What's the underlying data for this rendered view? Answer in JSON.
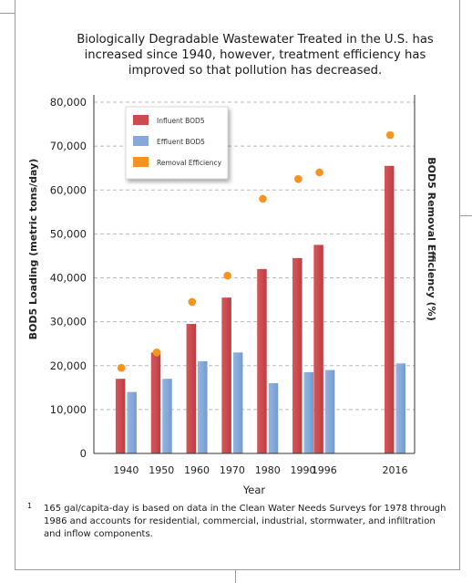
{
  "title": "Biologically Degradable Wastewater Treated in the U.S. has\nincreased since 1940, however, treatment efficiency has\nimproved so that pollution has decreased.",
  "footnote": {
    "marker": "1",
    "text": "165 gal/capita-day is based on data in the Clean Water Needs Surveys for 1978 through 1986 and accounts for residential, commercial, industrial, stormwater, and infiltration and inflow components."
  },
  "colors": {
    "influent": "#cc4b4f",
    "effluent": "#85a9d9",
    "efficiency": "#f7941d",
    "grid": "#b8b8b8",
    "axis": "#333333"
  },
  "chart_data": {
    "type": "bar",
    "xlabel": "Year",
    "ylabel": "BOD5 Loading (metric tons/day)",
    "ylabel_right": "BOD5 Removal Efficiency (%)",
    "categories": [
      "1940",
      "1950",
      "1960",
      "1970",
      "1980",
      "1990",
      "1996",
      "2016"
    ],
    "x_values": [
      1940,
      1950,
      1960,
      1970,
      1980,
      1990,
      1996,
      2016
    ],
    "yticks": [
      "0",
      "10,000",
      "20,000",
      "30,000",
      "40,000",
      "50,000",
      "60,000",
      "70,000",
      "80,000"
    ],
    "ylim": [
      0,
      80000
    ],
    "grid": true,
    "legend_position": "top-left",
    "series": [
      {
        "name": "Influent BOD5",
        "kind": "bar",
        "color_key": "influent",
        "values": [
          17000,
          23000,
          29500,
          35500,
          42000,
          44500,
          47500,
          65500
        ]
      },
      {
        "name": "Effluent BOD5",
        "kind": "bar",
        "color_key": "effluent",
        "values": [
          14000,
          17000,
          21000,
          23000,
          16000,
          18500,
          19000,
          20500
        ]
      },
      {
        "name": "Removal Efficiency",
        "kind": "scatter",
        "color_key": "efficiency",
        "values": [
          19500,
          23000,
          34500,
          40500,
          58000,
          62500,
          64000,
          72500
        ]
      }
    ]
  }
}
